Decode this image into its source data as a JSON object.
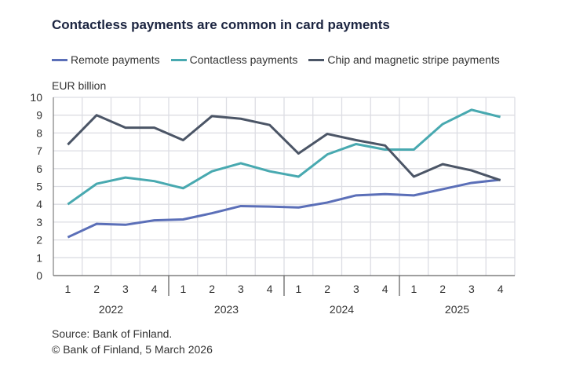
{
  "chart_data": {
    "type": "line",
    "title": "Contactless payments are common in card payments",
    "ylabel": "EUR billion",
    "ylim": [
      0,
      10
    ],
    "yticks": [
      "0",
      "1",
      "2",
      "3",
      "4",
      "5",
      "6",
      "7",
      "8",
      "9",
      "10"
    ],
    "quarters": [
      "1",
      "2",
      "3",
      "4",
      "1",
      "2",
      "3",
      "4",
      "1",
      "2",
      "3",
      "4",
      "1",
      "2",
      "3",
      "4"
    ],
    "years": [
      "2022",
      "2023",
      "2024",
      "2025"
    ],
    "grid": true,
    "legend_position": "top",
    "series": [
      {
        "name": "Remote payments",
        "color": "#5b6fb8",
        "values": [
          2.15,
          2.9,
          2.85,
          3.1,
          3.15,
          3.5,
          3.9,
          3.87,
          3.82,
          4.1,
          4.5,
          4.57,
          4.5,
          4.85,
          5.2,
          5.38
        ]
      },
      {
        "name": "Contactless payments",
        "color": "#48a9b0",
        "values": [
          4.0,
          5.15,
          5.5,
          5.3,
          4.9,
          5.85,
          6.3,
          5.85,
          5.55,
          6.8,
          7.38,
          7.07,
          7.07,
          8.5,
          9.3,
          8.9
        ]
      },
      {
        "name": "Chip and magnetic stripe payments",
        "color": "#4b5566",
        "values": [
          7.35,
          9.0,
          8.3,
          8.3,
          7.6,
          8.95,
          8.8,
          8.45,
          6.85,
          7.95,
          7.6,
          7.3,
          5.55,
          6.25,
          5.9,
          5.35
        ]
      }
    ]
  },
  "source": "Source: Bank of Finland.",
  "copyright": "© Bank of Finland, 5 March 2026"
}
